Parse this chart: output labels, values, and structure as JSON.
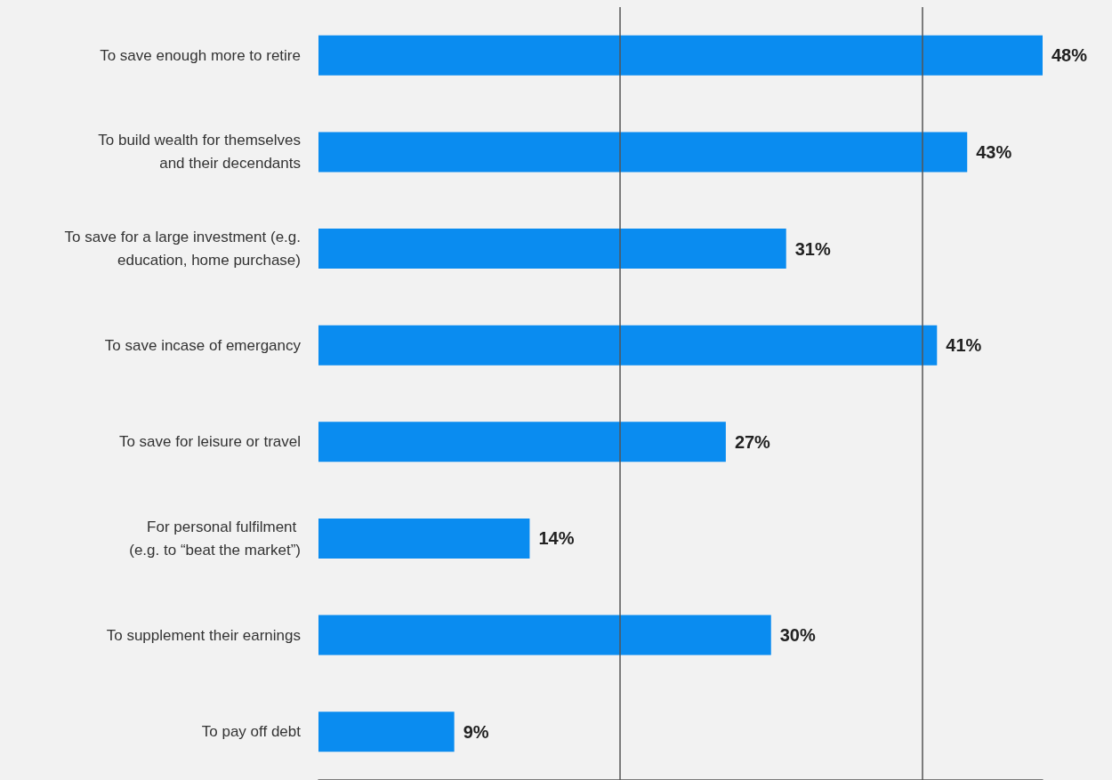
{
  "chart_data": {
    "type": "bar",
    "orientation": "horizontal",
    "categories": [
      "To save enough more to retire",
      "To build wealth for themselves\nand their decendants",
      "To save for a large investment (e.g.\neducation, home purchase)",
      "To save incase of emergancy",
      "To save for leisure or travel",
      "For personal fulfilment \n(e.g. to “beat the market”)",
      "To supplement their earnings",
      "To pay off debt"
    ],
    "values": [
      48,
      43,
      31,
      41,
      27,
      14,
      30,
      9
    ],
    "value_labels": [
      "48%",
      "43%",
      "31%",
      "41%",
      "27%",
      "14%",
      "30%",
      "9%"
    ],
    "color": "#0a8cf0",
    "ref_lines": [
      {
        "axis": "x",
        "value": 20,
        "label": null,
        "color": "#555555"
      },
      {
        "axis": "x",
        "value": 40,
        "label": null,
        "color": "#555555"
      }
    ],
    "tick_labels": "y"
  }
}
